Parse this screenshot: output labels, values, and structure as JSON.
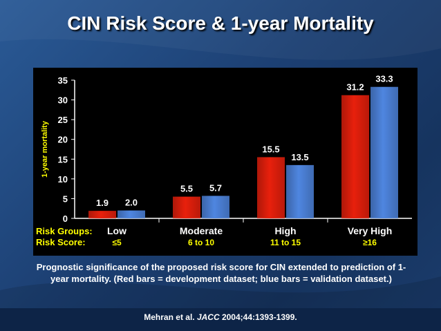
{
  "slide": {
    "title": "CIN Risk Score & 1-year Mortality",
    "caption": "Prognostic significance of the proposed risk score for CIN extended to prediction of 1-year mortality. (Red bars = development dataset; blue bars = validation dataset.)",
    "citation": {
      "authors": "Mehran et al. ",
      "journal": "JACC",
      "details": " 2004;44:1393-1399."
    }
  },
  "chart_data": {
    "type": "bar",
    "ylabel": "1-year mortality",
    "ylim": [
      0,
      35
    ],
    "yticks": [
      "0",
      "5",
      "10",
      "15",
      "20",
      "25",
      "30",
      "35"
    ],
    "row_labels": {
      "groups": "Risk Groups:",
      "scores": "Risk Score:"
    },
    "categories": [
      "Low",
      "Moderate",
      "High",
      "Very High"
    ],
    "risk_scores": [
      "≤5",
      "6 to 10",
      "11 to 15",
      "≥16"
    ],
    "series": [
      {
        "values": [
          1.9,
          5.5,
          15.5,
          31.2
        ],
        "labels": [
          "1.9",
          "5.5",
          "15.5",
          "31.2"
        ],
        "color": "#e8200c"
      },
      {
        "values": [
          2.0,
          5.7,
          13.5,
          33.3
        ],
        "labels": [
          "2.0",
          "5.7",
          "13.5",
          "33.3"
        ],
        "color": "#4f86e0"
      }
    ],
    "grid": false,
    "legend": "none"
  }
}
